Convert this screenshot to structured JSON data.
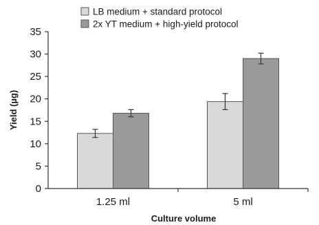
{
  "chart_data": {
    "type": "bar",
    "title": "",
    "xlabel": "Culture volume",
    "ylabel": "Yield (µg)",
    "categories": [
      "1.25 ml",
      "5 ml"
    ],
    "ylim": [
      0,
      35
    ],
    "yticks": [
      0,
      5,
      10,
      15,
      20,
      25,
      30,
      35
    ],
    "grid": false,
    "legend_position": "top",
    "series": [
      {
        "name": "LB medium + standard protocol",
        "values": [
          12.3,
          19.4
        ],
        "errors": [
          0.9,
          1.8
        ],
        "color": "#d9d9d9"
      },
      {
        "name": "2x YT medium + high-yield protocol",
        "values": [
          16.8,
          29.0
        ],
        "errors": [
          0.8,
          1.2
        ],
        "color": "#9a9a9a"
      }
    ]
  }
}
